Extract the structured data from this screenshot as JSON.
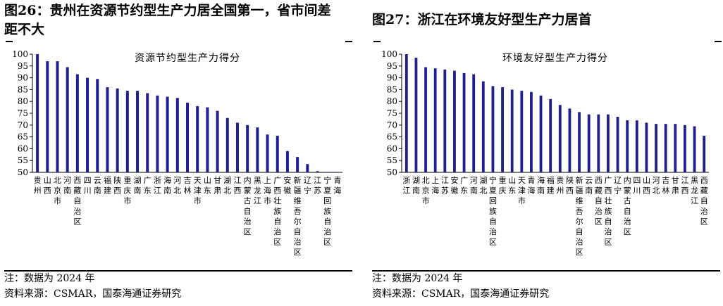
{
  "left": {
    "figure_title": "图26：贵州在资源节约型生产力居全国第一，省市间差距不大",
    "note": "注：数据为 2024 年",
    "source": "资料来源：CSMAR，国泰海通证券研究",
    "chart_color": "#1f1f8f",
    "chart_data": {
      "type": "bar",
      "title": "资源节约型生产力得分",
      "ylim": [
        50,
        100
      ],
      "yticks": [
        50,
        55,
        60,
        65,
        70,
        75,
        80,
        85,
        90,
        95,
        100
      ],
      "categories": [
        "贵州",
        "山西",
        "北京市",
        "河南",
        "西藏自治区",
        "四川",
        "云南",
        "福建",
        "陕西",
        "重庆市",
        "湖南",
        "广东",
        "浙江",
        "海南",
        "河北",
        "吉林",
        "天津市",
        "山东",
        "甘肃",
        "湖北",
        "江西",
        "内蒙古自治区",
        "黑龙江",
        "上海市",
        "广西壮族自治区",
        "安徽",
        "新疆维吾尔自治区",
        "辽宁",
        "江苏",
        "宁夏回族自治区",
        "青海"
      ],
      "values": [
        100,
        97,
        97,
        94.5,
        91.5,
        90,
        89.5,
        86,
        85.5,
        84.5,
        84.5,
        83.5,
        82.5,
        82,
        81.5,
        79.5,
        78,
        77.5,
        76,
        73,
        71,
        70,
        69,
        66,
        65.5,
        59,
        56.5,
        53.5,
        50.5,
        50,
        50
      ]
    }
  },
  "right": {
    "figure_title": "图27：浙江在环境友好型生产力居首",
    "note": "注：数据为 2024 年",
    "source": "资料来源：CSMAR，国泰海通证券研究",
    "chart_color": "#1f1f8f",
    "chart_data": {
      "type": "bar",
      "title": "环境友好型生产力得分",
      "ylim": [
        50,
        100
      ],
      "yticks": [
        50,
        55,
        60,
        65,
        70,
        75,
        80,
        85,
        90,
        95,
        100
      ],
      "categories": [
        "浙江",
        "湖南",
        "北京市",
        "上海",
        "江苏",
        "安徽",
        "广东",
        "河南",
        "湖北",
        "宁夏回族自治区",
        "重庆",
        "山东",
        "天津市",
        "青海",
        "海南",
        "福建",
        "贵州",
        "陕西",
        "新疆维吾尔自治区",
        "云南",
        "西藏自治区",
        "广西壮族自治区",
        "辽宁",
        "内蒙古自治区",
        "四川",
        "山西",
        "河北",
        "吉林",
        "甘肃",
        "江西",
        "黑龙江",
        "西藏自治区"
      ],
      "values": [
        100,
        98.5,
        94.5,
        94,
        93.5,
        93,
        92,
        91.5,
        88.5,
        86.5,
        86,
        85,
        84.5,
        84,
        82.5,
        81,
        78.5,
        77,
        75.5,
        74.5,
        74.5,
        74.5,
        73.5,
        72,
        72,
        71,
        70.5,
        70.5,
        70.5,
        70,
        69.5,
        65.5
      ]
    }
  }
}
